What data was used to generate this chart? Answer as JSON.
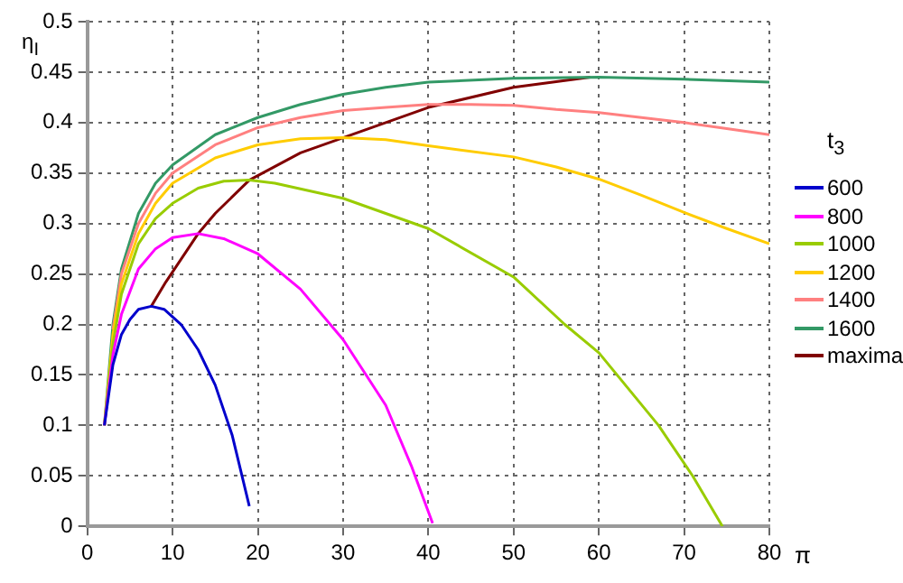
{
  "chart_data": {
    "type": "line",
    "xlabel": "π",
    "ylabel": "η$_{I}$",
    "legend_title": "t$_{3}$",
    "legend": "right",
    "grid": true,
    "marker": "none",
    "xlim": [
      0,
      80
    ],
    "xticks": [
      0,
      10,
      20,
      30,
      40,
      50,
      60,
      70,
      80
    ],
    "ylim": [
      0,
      0.5
    ],
    "yticks": [
      0,
      0.05,
      0.1,
      0.15,
      0.2,
      0.25,
      0.3,
      0.35,
      0.4,
      0.45,
      0.5
    ],
    "series": [
      {
        "name": "600",
        "color": "#0000cc",
        "x": [
          2,
          3,
          4,
          5,
          6,
          7.5,
          9,
          11,
          13,
          15,
          17,
          19
        ],
        "values": [
          0.1,
          0.16,
          0.19,
          0.205,
          0.215,
          0.218,
          0.215,
          0.2,
          0.175,
          0.14,
          0.09,
          0.02
        ]
      },
      {
        "name": "800",
        "color": "#ff00ff",
        "x": [
          2,
          3,
          4,
          6,
          8,
          10,
          13,
          16,
          20,
          25,
          30,
          35,
          38,
          40.5
        ],
        "values": [
          0.1,
          0.17,
          0.21,
          0.255,
          0.275,
          0.286,
          0.29,
          0.285,
          0.27,
          0.235,
          0.185,
          0.12,
          0.06,
          0.003
        ]
      },
      {
        "name": "1000",
        "color": "#99cc00",
        "x": [
          2,
          3,
          4,
          6,
          8,
          10,
          13,
          16,
          19,
          22,
          30,
          40,
          50,
          56,
          60,
          67,
          71,
          74.5
        ],
        "values": [
          0.1,
          0.18,
          0.23,
          0.28,
          0.305,
          0.32,
          0.335,
          0.342,
          0.343,
          0.34,
          0.325,
          0.295,
          0.247,
          0.2,
          0.172,
          0.1,
          0.05,
          0
        ]
      },
      {
        "name": "1200",
        "color": "#ffcc00",
        "x": [
          2,
          3,
          4,
          6,
          8,
          10,
          15,
          20,
          25,
          30,
          35,
          40,
          50,
          55,
          60,
          65,
          70,
          75,
          80
        ],
        "values": [
          0.1,
          0.19,
          0.24,
          0.29,
          0.32,
          0.34,
          0.365,
          0.378,
          0.384,
          0.385,
          0.383,
          0.377,
          0.366,
          0.356,
          0.344,
          0.328,
          0.311,
          0.295,
          0.28
        ]
      },
      {
        "name": "1400",
        "color": "#ff8080",
        "x": [
          3,
          4,
          6,
          8,
          10,
          15,
          20,
          25,
          30,
          35,
          40,
          45,
          50,
          55,
          60,
          65,
          70,
          75,
          80
        ],
        "values": [
          0.195,
          0.25,
          0.3,
          0.33,
          0.35,
          0.378,
          0.395,
          0.405,
          0.412,
          0.415,
          0.418,
          0.418,
          0.417,
          0.413,
          0.41,
          0.405,
          0.4,
          0.394,
          0.388
        ]
      },
      {
        "name": "1600",
        "color": "#339966",
        "x": [
          2,
          3,
          4,
          6,
          8,
          10,
          15,
          20,
          25,
          30,
          35,
          40,
          50,
          60,
          70,
          80
        ],
        "values": [
          0.1,
          0.2,
          0.255,
          0.31,
          0.34,
          0.358,
          0.388,
          0.405,
          0.418,
          0.428,
          0.435,
          0.44,
          0.444,
          0.445,
          0.443,
          0.44
        ]
      },
      {
        "name": "maxima",
        "color": "#800000",
        "x": [
          7.5,
          9.2,
          13,
          15,
          19,
          25,
          30,
          40,
          50,
          59
        ],
        "values": [
          0.218,
          0.242,
          0.29,
          0.31,
          0.343,
          0.37,
          0.385,
          0.415,
          0.435,
          0.445
        ]
      }
    ]
  }
}
